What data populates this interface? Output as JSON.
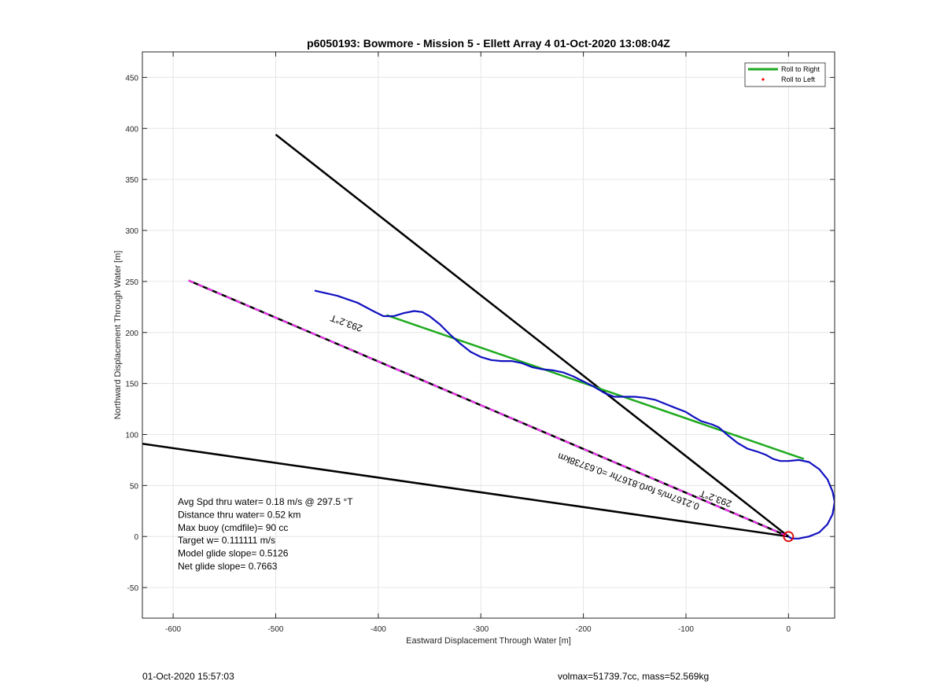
{
  "chart_data": {
    "type": "line",
    "title": "p6050193: Bowmore - Mission 5 - Ellett Array 4 01-Oct-2020 13:08:04Z",
    "xlabel": "Eastward Displacement Through Water [m]",
    "ylabel": "Northward Displacement Through Water [m]",
    "xlim": [
      -630,
      45
    ],
    "ylim": [
      -80,
      475
    ],
    "xticks": [
      -600,
      -500,
      -400,
      -300,
      -200,
      -100,
      0
    ],
    "yticks": [
      -50,
      0,
      50,
      100,
      150,
      200,
      250,
      300,
      350,
      400,
      450
    ],
    "grid": true,
    "legend": {
      "placement": "top-right",
      "entries": [
        {
          "label": "Roll to Right",
          "color": "#1faa1f",
          "marker": "line"
        },
        {
          "label": "Roll to Left",
          "color": "#ff0000",
          "marker": "dot"
        }
      ]
    },
    "lines": [
      {
        "color": "#000000",
        "points": [
          [
            -500,
            394
          ],
          [
            0,
            0
          ]
        ]
      },
      {
        "color": "#000000",
        "points": [
          [
            -630,
            91
          ],
          [
            0,
            0
          ]
        ]
      },
      {
        "color": "#000000",
        "dash_color": "#ff33ff",
        "points": [
          [
            -585,
            251
          ],
          [
            0,
            0
          ]
        ]
      },
      {
        "color": "#1faa1f",
        "points": [
          [
            -392,
            217
          ],
          [
            15,
            76
          ]
        ]
      }
    ],
    "track": {
      "color": "#1010c0",
      "points": [
        [
          -462,
          241
        ],
        [
          -440,
          236
        ],
        [
          -420,
          229
        ],
        [
          -405,
          221
        ],
        [
          -395,
          216
        ],
        [
          -385,
          216
        ],
        [
          -375,
          219
        ],
        [
          -365,
          221
        ],
        [
          -357,
          220
        ],
        [
          -350,
          216
        ],
        [
          -340,
          208
        ],
        [
          -330,
          198
        ],
        [
          -320,
          189
        ],
        [
          -310,
          181
        ],
        [
          -300,
          176
        ],
        [
          -290,
          173
        ],
        [
          -280,
          172
        ],
        [
          -270,
          172
        ],
        [
          -260,
          170
        ],
        [
          -250,
          166
        ],
        [
          -240,
          164
        ],
        [
          -230,
          163
        ],
        [
          -220,
          161
        ],
        [
          -210,
          157
        ],
        [
          -200,
          152
        ],
        [
          -190,
          147
        ],
        [
          -180,
          141
        ],
        [
          -170,
          137
        ],
        [
          -160,
          137
        ],
        [
          -150,
          137
        ],
        [
          -140,
          136
        ],
        [
          -130,
          134
        ],
        [
          -120,
          130
        ],
        [
          -110,
          126
        ],
        [
          -100,
          122
        ],
        [
          -92,
          117
        ],
        [
          -85,
          113
        ],
        [
          -75,
          110
        ],
        [
          -68,
          107
        ],
        [
          -60,
          100
        ],
        [
          -50,
          92
        ],
        [
          -40,
          86
        ],
        [
          -30,
          83
        ],
        [
          -22,
          80
        ],
        [
          -15,
          76
        ],
        [
          -8,
          74
        ],
        [
          0,
          74
        ],
        [
          10,
          75
        ],
        [
          20,
          73
        ],
        [
          30,
          66
        ],
        [
          38,
          56
        ],
        [
          43,
          44
        ],
        [
          45,
          34
        ],
        [
          43,
          22
        ],
        [
          38,
          12
        ],
        [
          30,
          4
        ],
        [
          20,
          0
        ],
        [
          10,
          -2
        ],
        [
          3,
          -2
        ],
        [
          0,
          0
        ]
      ]
    },
    "marker": {
      "x": 0,
      "y": 0,
      "color": "#dd0000",
      "shape": "circle"
    },
    "annotations": [
      {
        "id": "upper-heading",
        "text": "293.2°T",
        "x": -430,
        "y": 212,
        "rotation": 200
      },
      {
        "id": "lower-heading",
        "text": "293.2°T",
        "x": -70,
        "y": 40,
        "rotation": 200
      },
      {
        "id": "lower-speed",
        "text": "0.2167m/s for0.8167hr =0.63738km",
        "x": -155,
        "y": 57,
        "rotation": 200
      }
    ],
    "stats": [
      "Avg Spd thru water=  0.18 m/s @ 297.5 °T",
      "Distance thru water=  0.52 km",
      "Max buoy (cmdfile)= 90 cc",
      "Target w= 0.111111 m/s",
      "Model glide slope= 0.5126",
      "Net glide slope= 0.7663"
    ]
  },
  "footer": {
    "left": "01-Oct-2020 15:57:03",
    "right": "volmax=51739.7cc, mass=52.569kg"
  }
}
